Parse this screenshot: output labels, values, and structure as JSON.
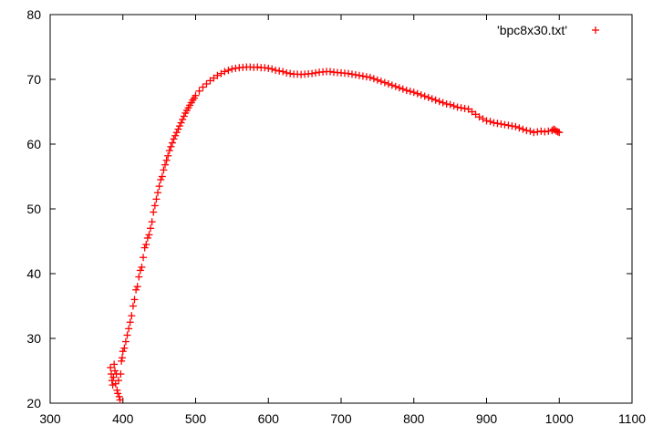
{
  "chart_data": {
    "type": "scatter",
    "marker": "plus",
    "xlim": [
      300,
      1100
    ],
    "ylim": [
      20,
      80
    ],
    "xticks": [
      300,
      400,
      500,
      600,
      700,
      800,
      900,
      1000,
      1100
    ],
    "yticks": [
      20,
      30,
      40,
      50,
      60,
      70,
      80
    ],
    "grid": false,
    "legend_position": "top-right",
    "series": [
      {
        "name": "'bpc8x30.txt'",
        "color": "#ff0000",
        "points": [
          [
            383,
            25.5
          ],
          [
            384,
            24.5
          ],
          [
            385,
            23.5
          ],
          [
            386,
            22.8
          ],
          [
            387,
            24.0
          ],
          [
            388,
            26.0
          ],
          [
            389,
            25.0
          ],
          [
            390,
            23.0
          ],
          [
            391,
            24.5
          ],
          [
            392,
            22.0
          ],
          [
            393,
            21.5
          ],
          [
            394,
            23.5
          ],
          [
            395,
            21.0
          ],
          [
            396,
            20.5
          ],
          [
            397,
            24.5
          ],
          [
            398,
            26.5
          ],
          [
            399,
            27.0
          ],
          [
            400,
            28.0
          ],
          [
            402,
            28.5
          ],
          [
            404,
            29.5
          ],
          [
            406,
            30.5
          ],
          [
            408,
            31.5
          ],
          [
            410,
            32.5
          ],
          [
            412,
            33.5
          ],
          [
            414,
            35.0
          ],
          [
            416,
            36.0
          ],
          [
            418,
            37.5
          ],
          [
            420,
            38.0
          ],
          [
            422,
            39.5
          ],
          [
            424,
            40.5
          ],
          [
            426,
            41.0
          ],
          [
            428,
            42.5
          ],
          [
            430,
            44.0
          ],
          [
            432,
            44.5
          ],
          [
            434,
            45.5
          ],
          [
            436,
            46.0
          ],
          [
            438,
            47.0
          ],
          [
            440,
            48.0
          ],
          [
            442,
            49.5
          ],
          [
            444,
            50.5
          ],
          [
            446,
            51.5
          ],
          [
            448,
            52.5
          ],
          [
            450,
            53.5
          ],
          [
            452,
            54.5
          ],
          [
            454,
            55.0
          ],
          [
            456,
            56.0
          ],
          [
            458,
            56.8
          ],
          [
            460,
            57.5
          ],
          [
            462,
            58.2
          ],
          [
            464,
            59.0
          ],
          [
            466,
            59.6
          ],
          [
            468,
            60.2
          ],
          [
            470,
            60.8
          ],
          [
            472,
            61.3
          ],
          [
            474,
            61.8
          ],
          [
            476,
            62.3
          ],
          [
            478,
            62.8
          ],
          [
            480,
            63.3
          ],
          [
            482,
            63.8
          ],
          [
            484,
            64.3
          ],
          [
            486,
            64.8
          ],
          [
            488,
            65.2
          ],
          [
            490,
            65.6
          ],
          [
            492,
            66.0
          ],
          [
            494,
            66.4
          ],
          [
            496,
            66.8
          ],
          [
            498,
            67.1
          ],
          [
            500,
            67.5
          ],
          [
            505,
            68.2
          ],
          [
            510,
            68.8
          ],
          [
            515,
            69.3
          ],
          [
            520,
            69.8
          ],
          [
            525,
            70.2
          ],
          [
            530,
            70.6
          ],
          [
            535,
            70.9
          ],
          [
            540,
            71.2
          ],
          [
            545,
            71.4
          ],
          [
            550,
            71.6
          ],
          [
            555,
            71.7
          ],
          [
            560,
            71.8
          ],
          [
            565,
            71.85
          ],
          [
            570,
            71.9
          ],
          [
            575,
            71.9
          ],
          [
            580,
            71.85
          ],
          [
            585,
            71.9
          ],
          [
            590,
            71.8
          ],
          [
            595,
            71.8
          ],
          [
            600,
            71.7
          ],
          [
            605,
            71.6
          ],
          [
            610,
            71.4
          ],
          [
            615,
            71.3
          ],
          [
            620,
            71.2
          ],
          [
            625,
            71.0
          ],
          [
            630,
            70.9
          ],
          [
            635,
            70.8
          ],
          [
            640,
            70.8
          ],
          [
            645,
            70.75
          ],
          [
            650,
            70.8
          ],
          [
            655,
            70.85
          ],
          [
            660,
            70.9
          ],
          [
            665,
            71.0
          ],
          [
            670,
            71.1
          ],
          [
            675,
            71.15
          ],
          [
            680,
            71.2
          ],
          [
            685,
            71.2
          ],
          [
            690,
            71.1
          ],
          [
            695,
            71.05
          ],
          [
            700,
            71.0
          ],
          [
            705,
            70.95
          ],
          [
            710,
            70.9
          ],
          [
            715,
            70.8
          ],
          [
            720,
            70.7
          ],
          [
            725,
            70.6
          ],
          [
            730,
            70.5
          ],
          [
            735,
            70.4
          ],
          [
            740,
            70.3
          ],
          [
            745,
            70.1
          ],
          [
            750,
            69.9
          ],
          [
            755,
            69.7
          ],
          [
            760,
            69.5
          ],
          [
            765,
            69.3
          ],
          [
            770,
            69.1
          ],
          [
            775,
            68.9
          ],
          [
            780,
            68.7
          ],
          [
            785,
            68.5
          ],
          [
            790,
            68.3
          ],
          [
            795,
            68.15
          ],
          [
            800,
            68.0
          ],
          [
            805,
            67.8
          ],
          [
            810,
            67.6
          ],
          [
            815,
            67.4
          ],
          [
            820,
            67.2
          ],
          [
            825,
            67.0
          ],
          [
            830,
            66.8
          ],
          [
            835,
            66.6
          ],
          [
            840,
            66.4
          ],
          [
            845,
            66.2
          ],
          [
            850,
            66.1
          ],
          [
            855,
            65.9
          ],
          [
            860,
            65.7
          ],
          [
            865,
            65.6
          ],
          [
            870,
            65.5
          ],
          [
            875,
            65.4
          ],
          [
            880,
            65.0
          ],
          [
            885,
            64.6
          ],
          [
            890,
            64.2
          ],
          [
            895,
            63.9
          ],
          [
            900,
            63.6
          ],
          [
            905,
            63.5
          ],
          [
            910,
            63.3
          ],
          [
            915,
            63.2
          ],
          [
            920,
            63.1
          ],
          [
            925,
            63.0
          ],
          [
            930,
            62.9
          ],
          [
            935,
            62.8
          ],
          [
            940,
            62.7
          ],
          [
            945,
            62.5
          ],
          [
            950,
            62.3
          ],
          [
            955,
            62.1
          ],
          [
            960,
            62.0
          ],
          [
            965,
            61.8
          ],
          [
            970,
            61.9
          ],
          [
            975,
            62.0
          ],
          [
            980,
            61.9
          ],
          [
            985,
            62.0
          ],
          [
            990,
            62.1
          ],
          [
            992,
            62.3
          ],
          [
            994,
            62.2
          ],
          [
            996,
            62.0
          ],
          [
            998,
            61.9
          ],
          [
            1000,
            61.8
          ]
        ]
      }
    ]
  }
}
